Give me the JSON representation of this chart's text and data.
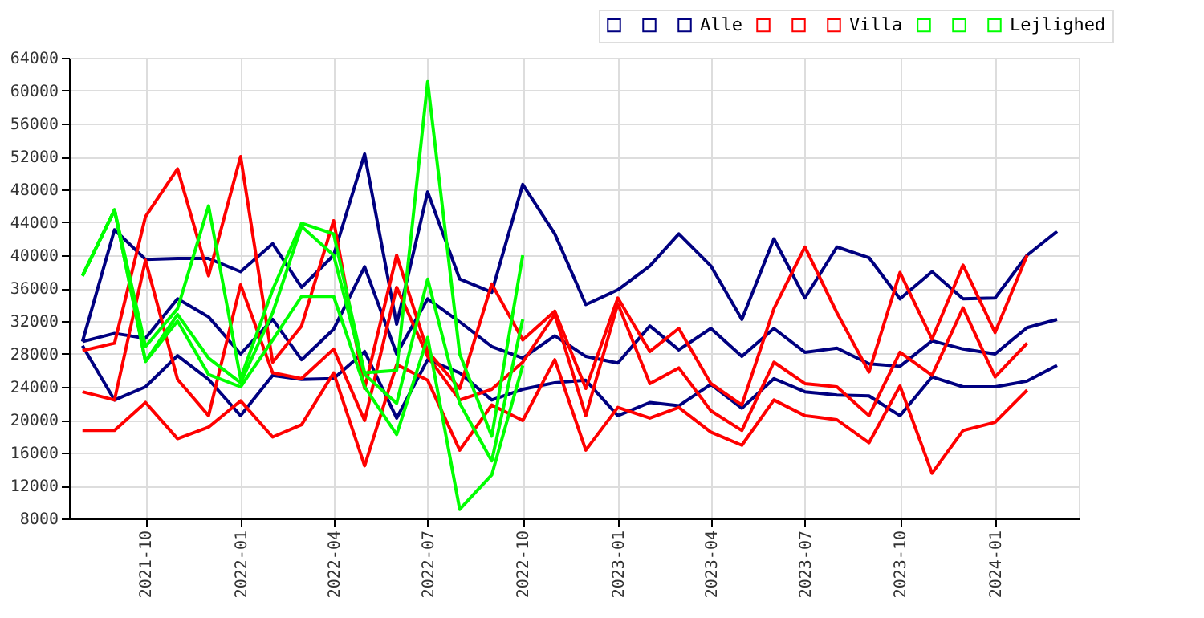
{
  "chart_data": {
    "type": "line",
    "x": [
      "2021-08",
      "2021-09",
      "2021-10",
      "2021-11",
      "2021-12",
      "2022-01",
      "2022-02",
      "2022-03",
      "2022-04",
      "2022-05",
      "2022-06",
      "2022-07",
      "2022-08",
      "2022-09",
      "2022-10",
      "2022-11",
      "2022-12",
      "2023-01",
      "2023-02",
      "2023-03",
      "2023-04",
      "2023-05",
      "2023-06",
      "2023-07",
      "2023-08",
      "2023-09",
      "2023-10",
      "2023-11",
      "2023-12",
      "2024-01",
      "2024-02",
      "2024-03"
    ],
    "series": [
      {
        "name": null,
        "color": "#000080",
        "values": [
          29500,
          43100,
          39500,
          39600,
          39600,
          38000,
          41400,
          36100,
          40000,
          52300,
          31600,
          47700,
          37100,
          35500,
          48600,
          42600,
          34000,
          35800,
          38700,
          42600,
          38700,
          32200,
          42000,
          34800,
          41000,
          39700,
          34700,
          38000,
          34700,
          34800,
          40000,
          42900
        ]
      },
      {
        "name": null,
        "color": "#000080",
        "values": [
          29500,
          30500,
          29900,
          34700,
          32500,
          28000,
          32200,
          27300,
          31000,
          38600,
          28000,
          34700,
          31900,
          28900,
          27500,
          30200,
          27700,
          26900,
          31400,
          28500,
          31100,
          27700,
          31100,
          28200,
          28700,
          26800,
          26500,
          29600,
          28600,
          28000,
          31200,
          32200
        ]
      },
      {
        "name": "Alle",
        "color": "#000080",
        "values": [
          29000,
          22400,
          24000,
          27800,
          24900,
          20500,
          25400,
          24900,
          25000,
          28300,
          20200,
          27300,
          25700,
          22400,
          23700,
          24500,
          24800,
          20500,
          22100,
          21700,
          24300,
          21400,
          25000,
          23400,
          23000,
          22900,
          20500,
          25200,
          24000,
          24000,
          24700,
          26600
        ]
      },
      {
        "name": null,
        "color": "#ff0000",
        "values": [
          28400,
          29300,
          44700,
          50500,
          37500,
          52000,
          27000,
          31400,
          44200,
          23800,
          40000,
          28300,
          23800,
          36500,
          29700,
          33200,
          23800,
          34800,
          28300,
          31100,
          24400,
          21800,
          33500,
          41000,
          33000,
          25800,
          37900,
          29800,
          38800,
          30600,
          40000,
          null
        ]
      },
      {
        "name": null,
        "color": "#ff0000",
        "values": [
          23400,
          22400,
          39400,
          24900,
          20500,
          36400,
          25700,
          25000,
          28600,
          19900,
          36100,
          27700,
          22400,
          23700,
          27000,
          32800,
          20500,
          34100,
          24400,
          26300,
          21100,
          18700,
          27000,
          24400,
          24000,
          20500,
          28200,
          25400,
          33600,
          25200,
          29300,
          null
        ]
      },
      {
        "name": "Villa",
        "color": "#ff0000",
        "values": [
          18700,
          18700,
          22100,
          17700,
          19100,
          22300,
          17900,
          19400,
          25700,
          14400,
          26700,
          24800,
          16300,
          21800,
          19900,
          27300,
          16300,
          21500,
          20200,
          21500,
          18500,
          16900,
          22400,
          20500,
          20000,
          17200,
          24100,
          13500,
          18700,
          19700,
          23600,
          null
        ]
      },
      {
        "name": null,
        "color": "#00ff00",
        "values": [
          37500,
          45500,
          28900,
          33500,
          46000,
          25000,
          35800,
          43900,
          42600,
          25700,
          26000,
          61100,
          28000,
          18000,
          40000,
          null,
          null,
          null,
          null,
          null,
          null,
          null,
          null,
          null,
          null,
          null,
          null,
          null,
          null,
          null,
          null,
          null
        ]
      },
      {
        "name": null,
        "color": "#00ff00",
        "values": [
          37500,
          45500,
          27100,
          32800,
          27500,
          24500,
          33000,
          43500,
          40000,
          25500,
          22000,
          37100,
          22000,
          15000,
          32200,
          null,
          null,
          null,
          null,
          null,
          null,
          null,
          null,
          null,
          null,
          null,
          null,
          null,
          null,
          null,
          null,
          null
        ]
      },
      {
        "name": "Lejlighed",
        "color": "#00ff00",
        "values": [
          37500,
          45500,
          27100,
          32000,
          25500,
          24000,
          29700,
          35000,
          35000,
          24000,
          18200,
          30000,
          9100,
          13300,
          26600,
          null,
          null,
          null,
          null,
          null,
          null,
          null,
          null,
          null,
          null,
          null,
          null,
          null,
          null,
          null,
          null,
          null
        ]
      }
    ],
    "xlim": [
      "2021-07-19",
      "2024-03-22"
    ],
    "xticks": [
      "2021-10",
      "2022-01",
      "2022-04",
      "2022-07",
      "2022-10",
      "2023-01",
      "2023-04",
      "2023-07",
      "2023-10",
      "2024-01"
    ],
    "ylim": [
      8000,
      64000
    ],
    "yticks": [
      8000,
      12000,
      16000,
      20000,
      24000,
      28000,
      32000,
      36000,
      40000,
      44000,
      48000,
      52000,
      56000,
      60000,
      64000
    ],
    "grid": true,
    "legend": "top right",
    "marker": "none",
    "line_style": "solid"
  }
}
